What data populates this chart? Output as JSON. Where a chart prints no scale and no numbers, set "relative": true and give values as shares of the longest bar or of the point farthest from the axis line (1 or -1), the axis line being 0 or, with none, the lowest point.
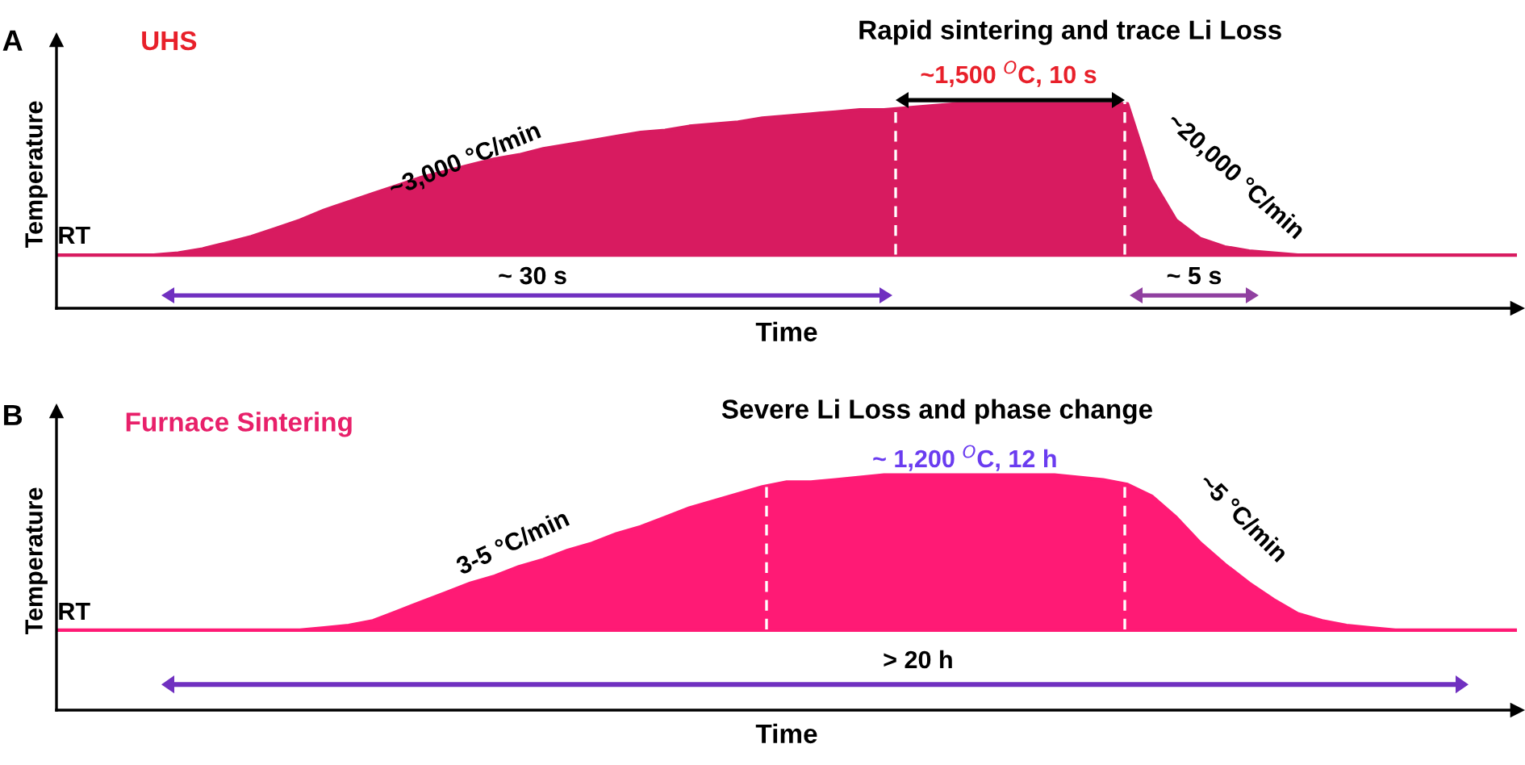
{
  "chart_data": [
    {
      "type": "area",
      "relative": true,
      "title": "Rapid sintering and trace Li Loss",
      "xlabel": "Time",
      "ylabel": "Temperature",
      "annotations": [
        "A",
        "UHS",
        "~1,500 $^{O}$C, 10 s",
        "~3,000 °C/min",
        "~20,000 °C/min",
        "RT",
        "~ 30 s",
        "~ 5 s"
      ],
      "categories": [
        null,
        null,
        null,
        null,
        null,
        null,
        null,
        null,
        null,
        null,
        null,
        null,
        null,
        null,
        null,
        null,
        null,
        null,
        null,
        null,
        null,
        null,
        null,
        null,
        null,
        null,
        null,
        null,
        null,
        null,
        null,
        null,
        null,
        null,
        null,
        null,
        null,
        null,
        null,
        null,
        null,
        null,
        null,
        null,
        null,
        null,
        null,
        null,
        null,
        null,
        null,
        null,
        null,
        null,
        null,
        null,
        null,
        null,
        null,
        null,
        null
      ],
      "series": [
        {
          "color": "#d81b60",
          "values": [
            0.26,
            0.26,
            0.26,
            0.26,
            0.26,
            0.27,
            0.29,
            0.32,
            0.35,
            0.39,
            0.43,
            0.48,
            0.52,
            0.56,
            0.6,
            0.64,
            0.67,
            0.7,
            0.73,
            0.75,
            0.78,
            0.8,
            0.82,
            0.84,
            0.86,
            0.87,
            0.89,
            0.9,
            0.91,
            0.93,
            0.94,
            0.95,
            0.96,
            0.97,
            0.97,
            0.98,
            0.99,
            1,
            1,
            1,
            1,
            1,
            1,
            1,
            1,
            0.63,
            0.43,
            0.34,
            0.3,
            0.28,
            0.27,
            0.26,
            0.26,
            0.26,
            0.26,
            0.26,
            0.26,
            0.26,
            0.26,
            0.26,
            0.26
          ]
        }
      ]
    },
    {
      "type": "area",
      "relative": true,
      "title": "Severe Li Loss and phase change",
      "xlabel": "Time",
      "ylabel": "Temperature",
      "annotations": [
        "B",
        "Furnace Sintering",
        "~ 1,200 $^{O}$C, 12 h",
        "3-5 °C/min",
        "~5 °C/min",
        "RT",
        "> 20 h"
      ],
      "categories": [
        null,
        null,
        null,
        null,
        null,
        null,
        null,
        null,
        null,
        null,
        null,
        null,
        null,
        null,
        null,
        null,
        null,
        null,
        null,
        null,
        null,
        null,
        null,
        null,
        null,
        null,
        null,
        null,
        null,
        null,
        null,
        null,
        null,
        null,
        null,
        null,
        null,
        null,
        null,
        null,
        null,
        null,
        null,
        null,
        null,
        null,
        null,
        null,
        null,
        null,
        null,
        null,
        null,
        null,
        null,
        null,
        null,
        null,
        null,
        null,
        null
      ],
      "series": [
        {
          "color": "#ff1a75",
          "values": [
            0.34,
            0.34,
            0.34,
            0.34,
            0.34,
            0.34,
            0.34,
            0.34,
            0.34,
            0.34,
            0.34,
            0.35,
            0.36,
            0.38,
            0.42,
            0.46,
            0.5,
            0.54,
            0.57,
            0.61,
            0.64,
            0.68,
            0.71,
            0.75,
            0.78,
            0.82,
            0.86,
            0.89,
            0.92,
            0.95,
            0.97,
            0.97,
            0.98,
            0.99,
            1,
            1,
            1,
            1,
            1,
            1,
            1,
            1,
            0.99,
            0.98,
            0.96,
            0.91,
            0.82,
            0.71,
            0.62,
            0.54,
            0.47,
            0.41,
            0.38,
            0.36,
            0.35,
            0.34,
            0.34,
            0.34,
            0.34,
            0.34,
            0.34
          ]
        }
      ]
    }
  ]
}
